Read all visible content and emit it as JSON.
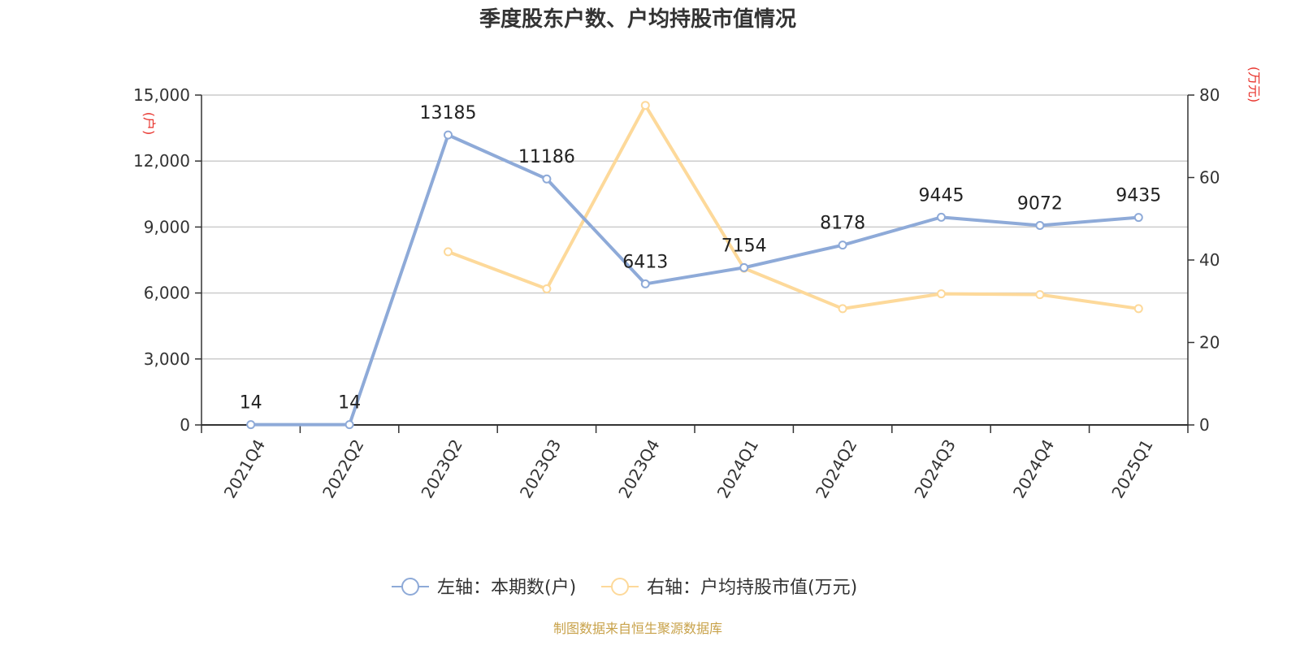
{
  "chart_data": {
    "type": "line",
    "title": "季度股东户数、户均持股市值情况",
    "categories": [
      "2021Q4",
      "2022Q2",
      "2023Q2",
      "2023Q3",
      "2023Q4",
      "2024Q1",
      "2024Q2",
      "2024Q3",
      "2024Q4",
      "2025Q1"
    ],
    "left_axis": {
      "unit_label": "(户)",
      "ylim": [
        0,
        15000
      ],
      "ticks": [
        "0",
        "3,000",
        "6,000",
        "9,000",
        "12,000",
        "15,000"
      ],
      "tick_values": [
        0,
        3000,
        6000,
        9000,
        12000,
        15000
      ]
    },
    "right_axis": {
      "unit_label": "(万元)",
      "ylim": [
        0,
        80
      ],
      "ticks": [
        "0",
        "20",
        "40",
        "60",
        "80"
      ],
      "tick_values": [
        0,
        20,
        40,
        60,
        80
      ]
    },
    "series": [
      {
        "name": "左轴：本期数(户)",
        "axis": "left",
        "color": "#8eaad8",
        "values": [
          14,
          14,
          13185,
          11186,
          6413,
          7154,
          8178,
          9445,
          9072,
          9435
        ],
        "labels": [
          "14",
          "14",
          "13185",
          "11186",
          "6413",
          "7154",
          "8178",
          "9445",
          "9072",
          "9435"
        ]
      },
      {
        "name": "右轴：户均持股市值(万元)",
        "axis": "right",
        "color": "#fdd99a",
        "values": [
          null,
          null,
          42,
          33,
          77.5,
          38,
          28.2,
          31.8,
          31.6,
          28.2
        ]
      }
    ],
    "grid": true,
    "legend": "bottom-center"
  },
  "source_text": "制图数据来自恒生聚源数据库",
  "colors": {
    "unit_label": "#e8322b",
    "source": "#c8a24a",
    "axis": "#333333",
    "grid": "#cccccc"
  }
}
